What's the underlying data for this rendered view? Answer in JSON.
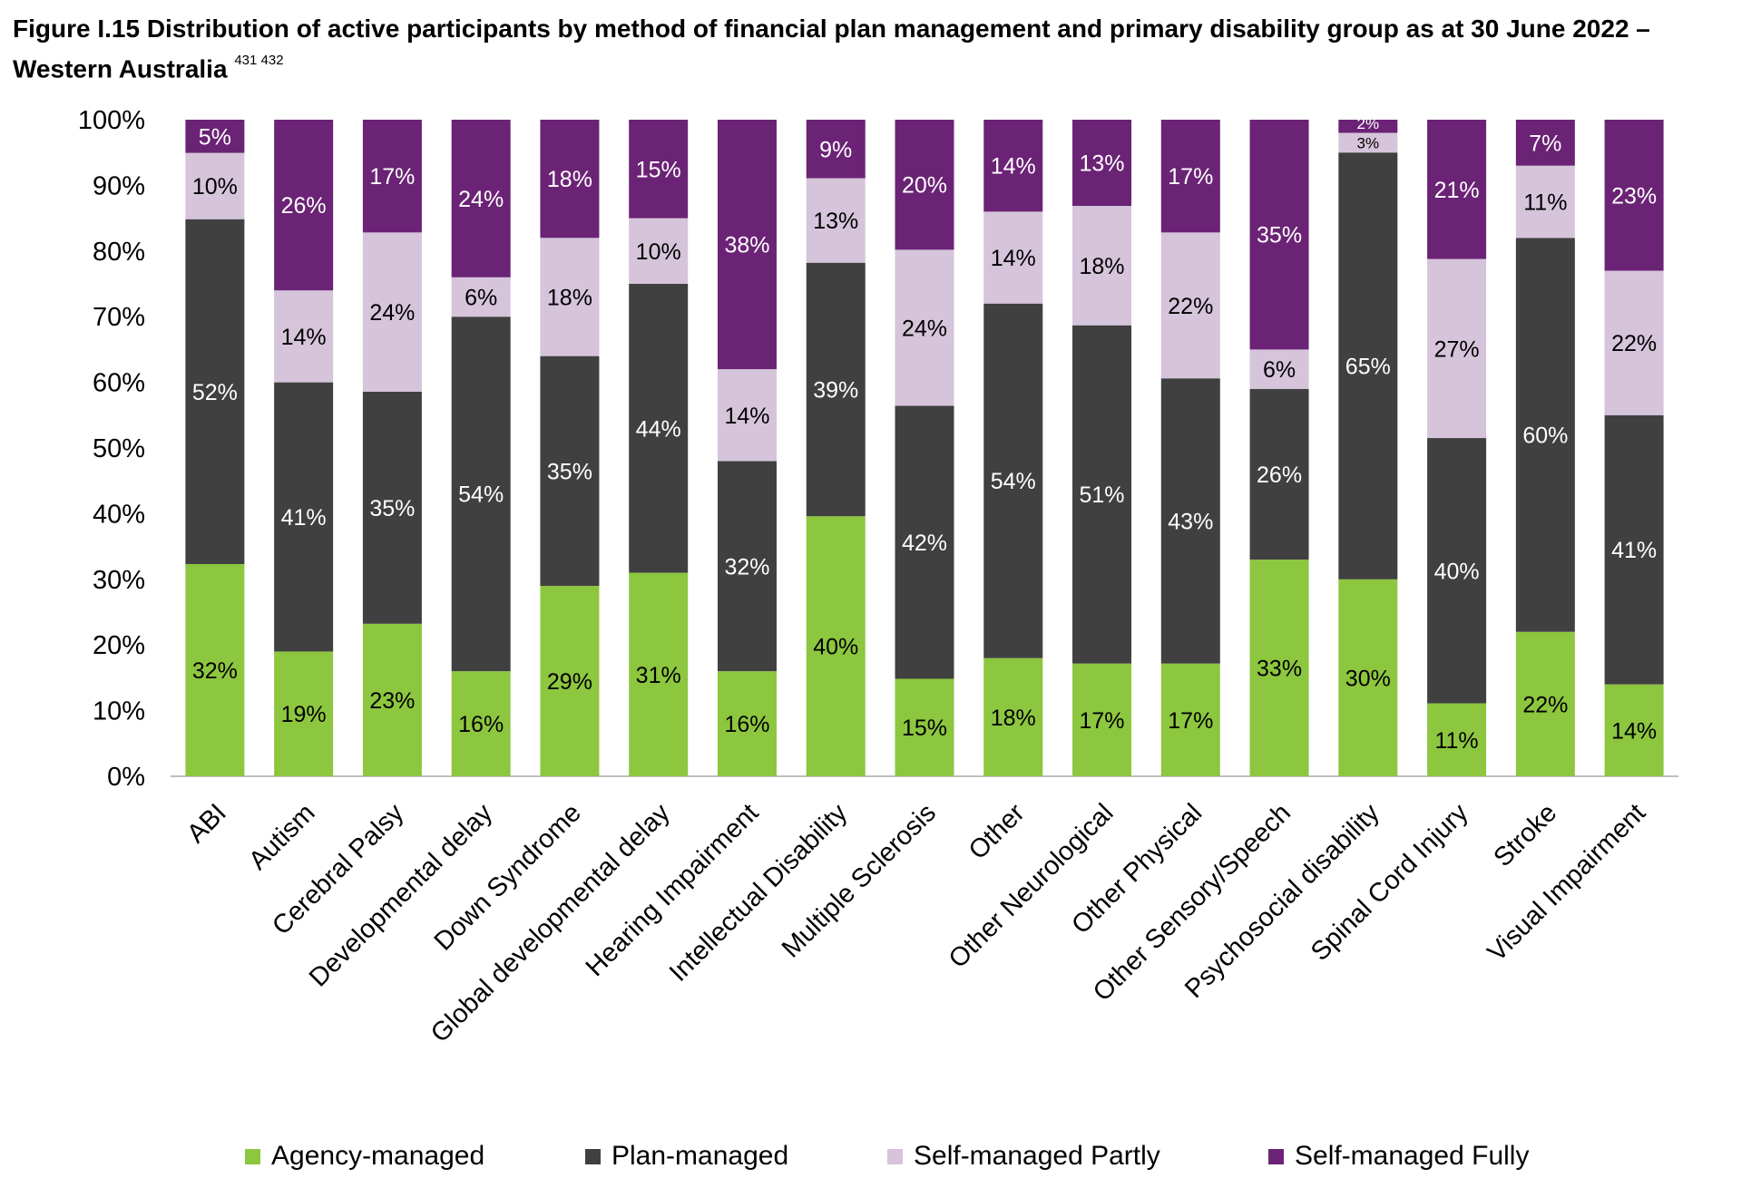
{
  "title": {
    "text": "Figure I.15 Distribution of active participants by method of financial plan management and primary disability group as at 30 June 2022 – Western Australia",
    "footnotes": "431 432"
  },
  "chart_data": {
    "type": "bar",
    "stacked": true,
    "percent_stacked": true,
    "ylim": [
      0,
      100
    ],
    "yticks": [
      "0%",
      "10%",
      "20%",
      "30%",
      "40%",
      "50%",
      "60%",
      "70%",
      "80%",
      "90%",
      "100%"
    ],
    "legend_position": "bottom",
    "categories": [
      "ABI",
      "Autism",
      "Cerebral Palsy",
      "Developmental delay",
      "Down Syndrome",
      "Global developmental delay",
      "Hearing Impairment",
      "Intellectual Disability",
      "Multiple Sclerosis",
      "Other",
      "Other Neurological",
      "Other Physical",
      "Other Sensory/Speech",
      "Psychosocial disability",
      "Spinal Cord Injury",
      "Stroke",
      "Visual Impairment"
    ],
    "series": [
      {
        "name": "Agency-managed",
        "color": "#8dc63f",
        "label_color": "#000000",
        "values": [
          32,
          19,
          23,
          16,
          29,
          31,
          16,
          40,
          15,
          18,
          17,
          17,
          33,
          30,
          11,
          22,
          14
        ],
        "labels": [
          "32%",
          "19%",
          "23%",
          "16%",
          "29%",
          "31%",
          "16%",
          "40%",
          "15%",
          "18%",
          "17%",
          "17%",
          "33%",
          "30%",
          "11%",
          "22%",
          "14%"
        ]
      },
      {
        "name": "Plan-managed",
        "color": "#404041",
        "label_color": "#ffffff",
        "values": [
          52,
          41,
          35,
          54,
          35,
          44,
          32,
          39,
          42,
          54,
          51,
          43,
          26,
          65,
          40,
          60,
          41
        ],
        "labels": [
          "52%",
          "41%",
          "35%",
          "54%",
          "35%",
          "44%",
          "32%",
          "39%",
          "42%",
          "54%",
          "51%",
          "43%",
          "26%",
          "65%",
          "40%",
          "60%",
          "41%"
        ]
      },
      {
        "name": "Self-managed Partly",
        "color": "#d5c4da",
        "label_color": "#000000",
        "values": [
          10,
          14,
          24,
          6,
          18,
          10,
          14,
          13,
          24,
          14,
          18,
          22,
          6,
          3,
          27,
          11,
          22
        ],
        "labels": [
          "10%",
          "14%",
          "24%",
          "6%",
          "18%",
          "10%",
          "14%",
          "13%",
          "24%",
          "14%",
          "18%",
          "22%",
          "6%",
          "3%",
          "27%",
          "11%",
          "22%"
        ]
      },
      {
        "name": "Self-managed Fully",
        "color": "#6b2375",
        "label_color": "#ffffff",
        "values": [
          5,
          26,
          17,
          24,
          18,
          15,
          38,
          9,
          20,
          14,
          13,
          17,
          35,
          2,
          21,
          7,
          23
        ],
        "labels": [
          "5%",
          "26%",
          "17%",
          "24%",
          "18%",
          "15%",
          "38%",
          "9%",
          "20%",
          "14%",
          "13%",
          "17%",
          "35%",
          "2%",
          "21%",
          "7%",
          "23%"
        ]
      }
    ]
  }
}
